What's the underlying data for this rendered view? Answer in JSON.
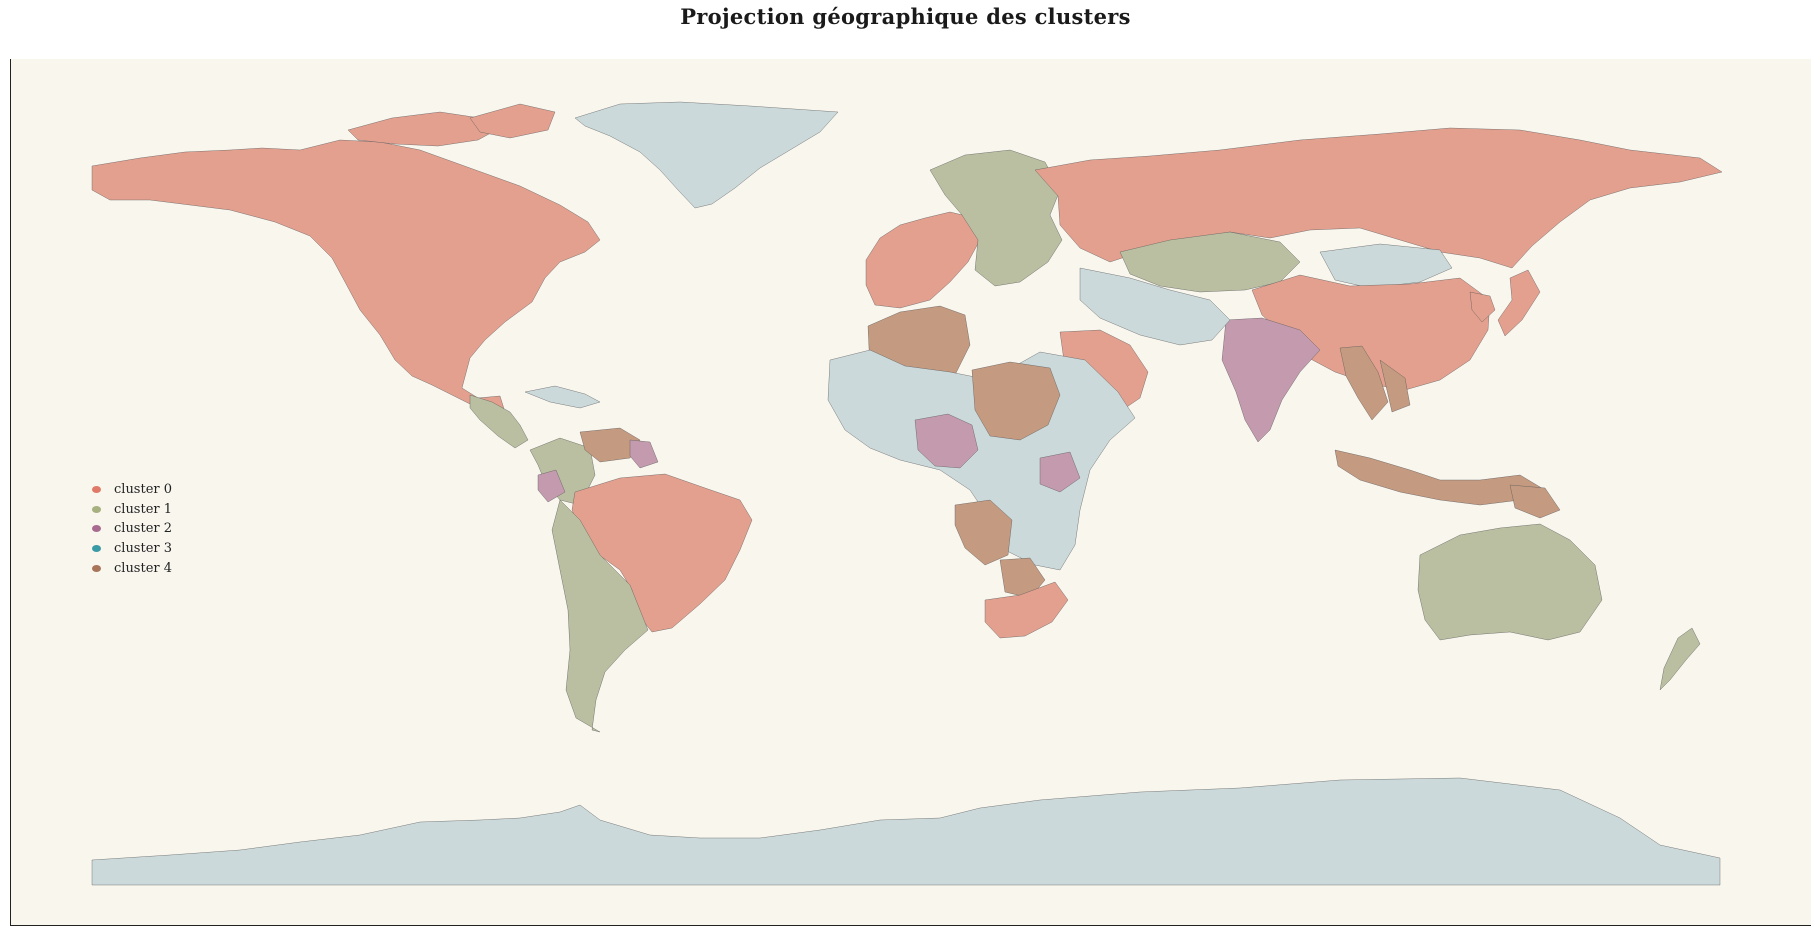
{
  "title": "Projection géographique des clusters",
  "colors": {
    "background": "#f9f6ee",
    "cluster_0": "#e3a08f",
    "cluster_1": "#b9bfa0",
    "cluster_2": "#c39aae",
    "cluster_3": "#cbd9da",
    "cluster_4": "#c49a80",
    "legend_0": "#e07a68",
    "legend_1": "#a7b07f",
    "legend_2": "#a86b8f",
    "legend_3": "#3a9aa5",
    "legend_4": "#a8745a"
  },
  "legend": {
    "items": [
      {
        "label": "cluster 0",
        "color": "#e07a68"
      },
      {
        "label": "cluster 1",
        "color": "#a7b07f"
      },
      {
        "label": "cluster 2",
        "color": "#a86b8f"
      },
      {
        "label": "cluster 3",
        "color": "#3a9aa5"
      },
      {
        "label": "cluster 4",
        "color": "#a8745a"
      }
    ]
  },
  "map": {
    "projection": "plate carrée (equirectangular)",
    "regions": [
      {
        "name": "North America",
        "cluster": 0
      },
      {
        "name": "Central America",
        "cluster": 1
      },
      {
        "name": "Caribbean",
        "cluster": 3
      },
      {
        "name": "Greenland",
        "cluster": 3
      },
      {
        "name": "Colombia",
        "cluster": 1
      },
      {
        "name": "Venezuela",
        "cluster": 4
      },
      {
        "name": "Guyana",
        "cluster": 2
      },
      {
        "name": "Ecuador",
        "cluster": 2
      },
      {
        "name": "Brazil",
        "cluster": 0
      },
      {
        "name": "Southern South America",
        "cluster": 1
      },
      {
        "name": "Western Europe",
        "cluster": 0
      },
      {
        "name": "Eastern Europe",
        "cluster": 1
      },
      {
        "name": "Russia",
        "cluster": 0
      },
      {
        "name": "Kazakhstan",
        "cluster": 1
      },
      {
        "name": "Mongolia",
        "cluster": 3
      },
      {
        "name": "China",
        "cluster": 0
      },
      {
        "name": "India",
        "cluster": 2
      },
      {
        "name": "Saudi Arabia",
        "cluster": 0
      },
      {
        "name": "Iran & Central Asia",
        "cluster": 3
      },
      {
        "name": "Maghreb",
        "cluster": 4
      },
      {
        "name": "Sahel & East Africa",
        "cluster": 3
      },
      {
        "name": "Nigeria",
        "cluster": 2
      },
      {
        "name": "Chad & Sudan",
        "cluster": 4
      },
      {
        "name": "Angola",
        "cluster": 4
      },
      {
        "name": "South Africa",
        "cluster": 0
      },
      {
        "name": "Southeast Asia",
        "cluster": 4
      },
      {
        "name": "Indonesia",
        "cluster": 4
      },
      {
        "name": "Japan & Korea",
        "cluster": 0
      },
      {
        "name": "Australia",
        "cluster": 1
      },
      {
        "name": "New Zealand",
        "cluster": 1
      },
      {
        "name": "Antarctica",
        "cluster": 3
      }
    ]
  }
}
